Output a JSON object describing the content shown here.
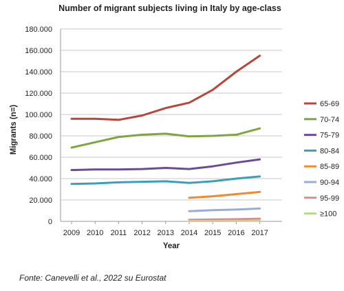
{
  "chart_data": {
    "type": "line",
    "title": "Number of migrant subjects living in Italy by age-class",
    "xlabel": "Year",
    "ylabel": "Migrants (n=)",
    "x": [
      2009,
      2010,
      2011,
      2012,
      2013,
      2014,
      2015,
      2016,
      2017
    ],
    "x_tick_labels": [
      "2009",
      "2010",
      "2011",
      "2012",
      "2013",
      "2014",
      "2015",
      "2016",
      "2017"
    ],
    "ylim": [
      0,
      180000
    ],
    "y_ticks": [
      0,
      20000,
      40000,
      60000,
      80000,
      100000,
      120000,
      140000,
      160000,
      180000
    ],
    "y_tick_labels": [
      "0",
      "20.000",
      "40.000",
      "60.000",
      "80.000",
      "100.000",
      "120.000",
      "140.000",
      "160.000",
      "180.000"
    ],
    "grid": true,
    "legend_position": "right",
    "series": [
      {
        "name": "65-69",
        "color": "#b7463c",
        "values": [
          96000,
          96000,
          95000,
          99000,
          106000,
          111000,
          123000,
          140000,
          155000
        ]
      },
      {
        "name": "70-74",
        "color": "#7ea53f",
        "values": [
          69000,
          74000,
          79000,
          81000,
          82000,
          79500,
          80000,
          81000,
          87000
        ]
      },
      {
        "name": "75-79",
        "color": "#6a4b94",
        "values": [
          48000,
          48500,
          48500,
          49000,
          50000,
          49000,
          51500,
          55000,
          58000
        ]
      },
      {
        "name": "80-84",
        "color": "#3a9fb7",
        "values": [
          35000,
          35500,
          36500,
          37000,
          37500,
          36000,
          37500,
          40000,
          42000
        ]
      },
      {
        "name": "85-89",
        "color": "#f08a2c",
        "values": [
          null,
          null,
          null,
          null,
          null,
          22000,
          23500,
          25500,
          27500
        ]
      },
      {
        "name": "90-94",
        "color": "#99acd9",
        "values": [
          null,
          null,
          null,
          null,
          null,
          9500,
          10500,
          11000,
          12000
        ]
      },
      {
        "name": "95-99",
        "color": "#d98e8e",
        "values": [
          null,
          null,
          null,
          null,
          null,
          1500,
          1800,
          2000,
          2500
        ]
      },
      {
        "name": "≥100",
        "color": "#bcd694",
        "values": [
          null,
          null,
          null,
          null,
          null,
          300,
          350,
          400,
          450
        ]
      }
    ]
  },
  "source_note": "Fonte: Canevelli et al., 2022 su Eurostat"
}
